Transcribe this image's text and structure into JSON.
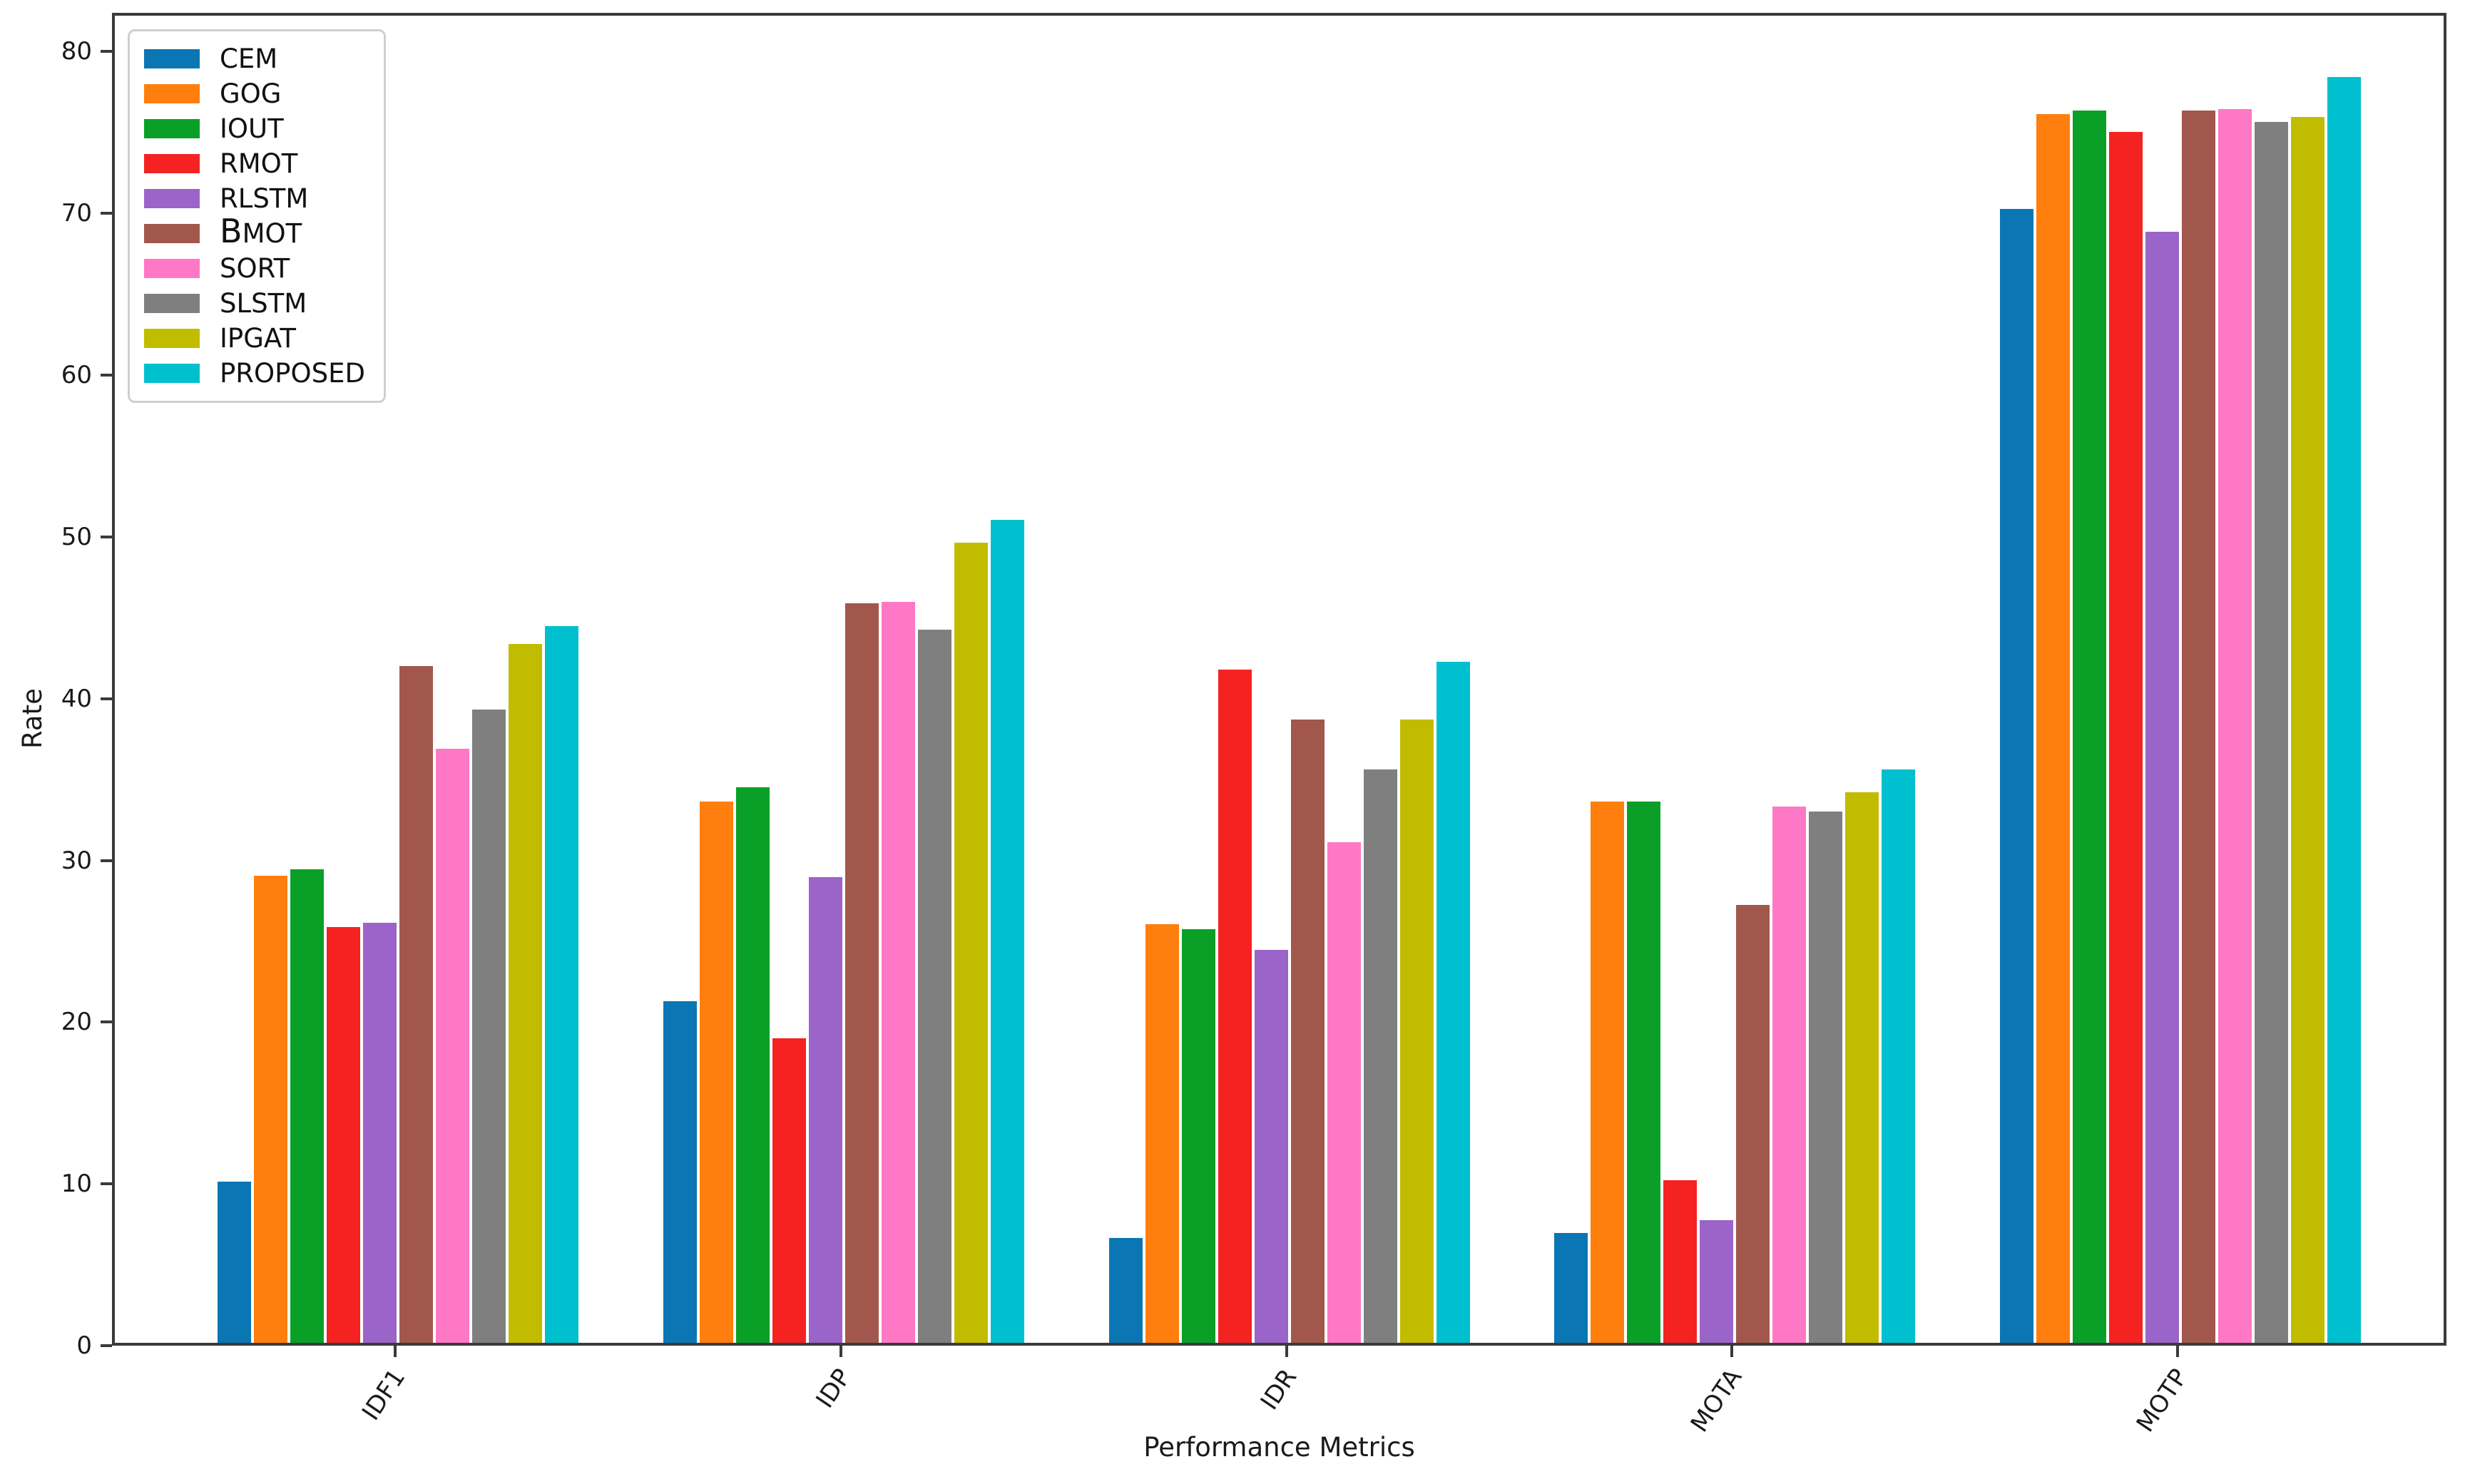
{
  "chart_data": {
    "type": "bar",
    "title": "",
    "xlabel": "Performance Metrics",
    "ylabel": "Rate",
    "categories": [
      "IDF1",
      "IDP",
      "IDR",
      "MOTA",
      "MOTP"
    ],
    "y_ticks": [
      0,
      10,
      20,
      30,
      40,
      50,
      60,
      70,
      80
    ],
    "ylim": [
      0,
      82.4
    ],
    "grid": false,
    "legend_position": "upper-left",
    "background": "#ffffff",
    "axis_color": "#3a3a3a",
    "series": [
      {
        "name": "CEM",
        "color": "#0b76b4",
        "values": [
          10.0,
          21.2,
          6.5,
          6.8,
          70.4
        ]
      },
      {
        "name": "GOG",
        "color": "#ff7f0e",
        "values": [
          29.0,
          33.6,
          26.0,
          33.6,
          76.3
        ]
      },
      {
        "name": "IOUT",
        "color": "#0aa028",
        "values": [
          29.4,
          34.5,
          25.7,
          33.6,
          76.5
        ]
      },
      {
        "name": "RMOT",
        "color": "#f52222",
        "values": [
          25.8,
          18.9,
          41.8,
          10.1,
          75.2
        ]
      },
      {
        "name": "RLSTM",
        "color": "#9b64c8",
        "values": [
          26.1,
          28.9,
          24.4,
          7.6,
          69.0
        ]
      },
      {
        "name": "ΒMOT",
        "color": "#a2574d",
        "values": [
          42.0,
          45.9,
          38.7,
          27.2,
          76.5
        ]
      },
      {
        "name": "SORT",
        "color": "#ff78c5",
        "values": [
          36.9,
          46.0,
          31.1,
          33.3,
          76.6
        ]
      },
      {
        "name": "SLSTM",
        "color": "#7f7f7f",
        "values": [
          39.3,
          44.3,
          35.6,
          33.0,
          75.8
        ]
      },
      {
        "name": "IPGAT",
        "color": "#c2bc00",
        "values": [
          43.4,
          49.7,
          38.7,
          34.2,
          76.1
        ]
      },
      {
        "name": "PROPOSED",
        "color": "#00c0d0",
        "values": [
          44.5,
          51.1,
          42.3,
          35.6,
          78.6
        ]
      }
    ]
  }
}
